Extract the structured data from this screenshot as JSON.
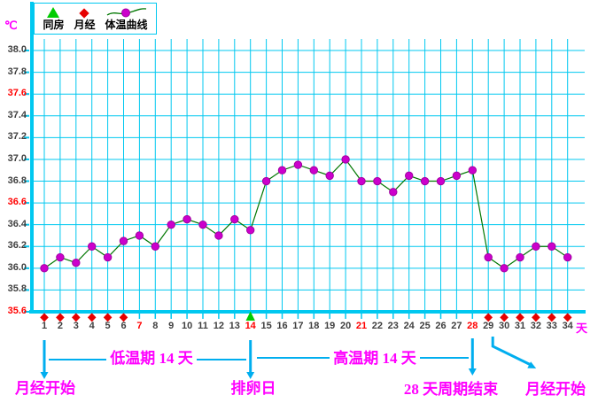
{
  "legend": {
    "items": [
      {
        "icon": "intercourse-triangle-icon",
        "label": "同房"
      },
      {
        "icon": "menses-diamond-icon",
        "label": "月经"
      },
      {
        "icon": "temperature-curve-icon",
        "label": "体温曲线"
      }
    ]
  },
  "chart_data": {
    "type": "line",
    "y_label": "℃",
    "x_label": "天",
    "x": [
      1,
      2,
      3,
      4,
      5,
      6,
      7,
      8,
      9,
      10,
      11,
      12,
      13,
      14,
      15,
      16,
      17,
      18,
      19,
      20,
      21,
      22,
      23,
      24,
      25,
      26,
      27,
      28,
      29,
      30,
      31,
      32,
      33,
      34
    ],
    "series": [
      {
        "name": "体温曲线",
        "color": "#007700",
        "marker_color": "#CC00CC",
        "values": [
          36.0,
          36.1,
          36.05,
          36.2,
          36.1,
          36.25,
          36.3,
          36.2,
          36.4,
          36.45,
          36.4,
          36.3,
          36.45,
          36.35,
          36.8,
          36.9,
          36.95,
          36.9,
          36.85,
          37.0,
          36.8,
          36.8,
          36.7,
          36.85,
          36.8,
          36.8,
          36.85,
          36.9,
          36.1,
          36.0,
          36.1,
          36.2,
          36.2,
          36.1
        ]
      }
    ],
    "ylim": [
      35.6,
      38.0
    ],
    "ytick_step": 0.2,
    "y_ticks": [
      "38.0",
      "37.8",
      "37.6",
      "37.4",
      "37.2",
      "37.0",
      "36.8",
      "36.6",
      "36.4",
      "36.2",
      "36.0",
      "35.8",
      "35.6"
    ],
    "red_y_ticks": [
      "37.6",
      "36.6",
      "35.6"
    ],
    "red_x_ticks": [
      7,
      14,
      21,
      28
    ],
    "menses_days": [
      1,
      2,
      3,
      4,
      5,
      6,
      29,
      30,
      31,
      32,
      33,
      34
    ],
    "intercourse_days": [
      14
    ],
    "grid": true,
    "legend_position": "top-left"
  },
  "annotations": {
    "menses_start_left": {
      "label": "月经开始",
      "target_day": 1
    },
    "low_phase": {
      "label": "低温期 14 天"
    },
    "ovulation": {
      "label": "排卵日",
      "target_day": 14
    },
    "high_phase": {
      "label": "高温期 14 天"
    },
    "cycle_end": {
      "label": "28 天周期结束",
      "target_day": 28
    },
    "menses_start_right": {
      "label": "月经开始",
      "target_day": 29
    }
  },
  "colors": {
    "grid": "#00C8F0",
    "axis": "#00C8F0",
    "curve": "#007700",
    "marker": "#CC00CC",
    "marker_edge": "#A000A0",
    "menses": "#E60000",
    "intercourse": "#00CC00",
    "annotation_text": "#FF00FF",
    "arrow": "#00AEEF",
    "tick_text": "#3F3F3F",
    "red_text": "#FF0000",
    "unit_text": "#FF00FF"
  }
}
